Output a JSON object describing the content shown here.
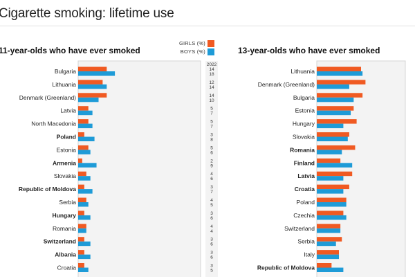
{
  "title": "Cigarette smoking: lifetime use",
  "legend": {
    "girls_label": "GIRLS (%)",
    "boys_label": "BOYS (%)"
  },
  "colors": {
    "girls": "#f05a22",
    "boys": "#1e9bd7",
    "plot_bg": "#f3f3f3",
    "plot_border": "#d4d4d4"
  },
  "year_label": "2022",
  "chart_data": [
    {
      "type": "bar",
      "title": "11-year-olds who have ever smoked",
      "orientation": "horizontal",
      "grouped": true,
      "show_value_column": true,
      "xlim": [
        0,
        60
      ],
      "categories": [
        "Bulgaria",
        "Lithuania",
        "Denmark (Greenland)",
        "Latvia",
        "North Macedonia",
        "Poland",
        "Estonia",
        "Armenia",
        "Slovakia",
        "Republic of Moldova",
        "Serbia",
        "Hungary",
        "Romania",
        "Switzerland",
        "Albania",
        "Croatia"
      ],
      "bold_categories": [
        "Poland",
        "Armenia",
        "Republic of Moldova",
        "Hungary",
        "Switzerland",
        "Albania"
      ],
      "series": [
        {
          "name": "GIRLS (%)",
          "values": [
            14,
            12,
            14,
            5,
            5,
            3,
            5,
            2,
            4,
            3,
            4,
            3,
            4,
            3,
            3,
            3
          ]
        },
        {
          "name": "BOYS (%)",
          "values": [
            18,
            14,
            10,
            7,
            7,
            8,
            6,
            9,
            6,
            7,
            5,
            6,
            4,
            6,
            6,
            5
          ]
        }
      ]
    },
    {
      "type": "bar",
      "title": "13-year-olds who have ever smoked",
      "orientation": "horizontal",
      "grouped": true,
      "xlim": [
        0,
        60
      ],
      "categories": [
        "Lithuania",
        "Denmark (Greenland)",
        "Bulgaria",
        "Estonia",
        "Hungary",
        "Slovakia",
        "Romania",
        "Finland",
        "Latvia",
        "Croatia",
        "Poland",
        "Czechia",
        "Switzerland",
        "Serbia",
        "Italy",
        "Republic of Moldova"
      ],
      "bold_categories": [
        "Romania",
        "Finland",
        "Latvia",
        "Croatia",
        "Republic of Moldova"
      ],
      "series": [
        {
          "name": "GIRLS (%)",
          "values": [
            30,
            33,
            31,
            25,
            27,
            22,
            26,
            16,
            24,
            22,
            20,
            18,
            16,
            17,
            15,
            10
          ]
        },
        {
          "name": "BOYS (%)",
          "values": [
            31,
            22,
            25,
            23,
            18,
            21,
            17,
            24,
            18,
            18,
            20,
            20,
            16,
            13,
            15,
            18
          ]
        }
      ]
    }
  ]
}
